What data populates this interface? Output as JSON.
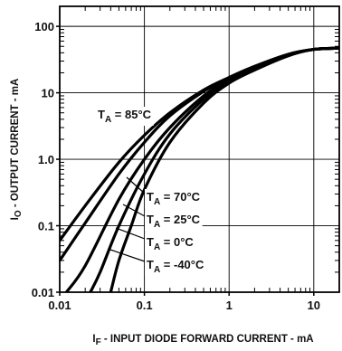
{
  "chart_data": {
    "type": "line",
    "xscale": "log",
    "yscale": "log",
    "xlim": [
      0.01,
      20
    ],
    "ylim": [
      0.01,
      200
    ],
    "grid": true,
    "x_ticks": [
      0.01,
      0.1,
      1,
      10
    ],
    "x_tick_labels": [
      "0.01",
      "0.1",
      "1",
      "10"
    ],
    "y_ticks": [
      0.01,
      0.1,
      1,
      10,
      100
    ],
    "y_tick_labels": [
      "0.01",
      "0.1",
      "1.0",
      "10",
      "100"
    ],
    "xlabel": {
      "main": "I",
      "sub": "F",
      "rest": " - INPUT DIODE FORWARD CURRENT - mA"
    },
    "ylabel": {
      "main": "I",
      "sub": "O",
      "rest": " - OUTPUT CURRENT - mA"
    },
    "series": [
      {
        "label": {
          "pre": "T",
          "sub": "A",
          "post": " = 85°C"
        },
        "points": [
          [
            0.01,
            0.06
          ],
          [
            0.02,
            0.2
          ],
          [
            0.05,
            0.9
          ],
          [
            0.1,
            2.3
          ],
          [
            0.2,
            5
          ],
          [
            0.5,
            11
          ],
          [
            1,
            17
          ],
          [
            2,
            25
          ],
          [
            5,
            38
          ],
          [
            10,
            45
          ],
          [
            20,
            47
          ]
        ]
      },
      {
        "label": {
          "pre": "T",
          "sub": "A",
          "post": " = 70°C"
        },
        "points": [
          [
            0.01,
            0.03
          ],
          [
            0.02,
            0.11
          ],
          [
            0.05,
            0.6
          ],
          [
            0.1,
            1.8
          ],
          [
            0.2,
            4.5
          ],
          [
            0.5,
            10.5
          ],
          [
            1,
            17
          ],
          [
            2,
            25
          ],
          [
            5,
            38
          ],
          [
            10,
            45
          ],
          [
            20,
            47
          ]
        ]
      },
      {
        "label": {
          "pre": "T",
          "sub": "A",
          "post": " = 25°C"
        },
        "points": [
          [
            0.012,
            0.01
          ],
          [
            0.02,
            0.025
          ],
          [
            0.05,
            0.25
          ],
          [
            0.1,
            1
          ],
          [
            0.2,
            3
          ],
          [
            0.5,
            9
          ],
          [
            1,
            16
          ],
          [
            2,
            24
          ],
          [
            5,
            37
          ],
          [
            10,
            45
          ],
          [
            20,
            47
          ]
        ]
      },
      {
        "label": {
          "pre": "T",
          "sub": "A",
          "post": " = 0°C"
        },
        "points": [
          [
            0.023,
            0.01
          ],
          [
            0.03,
            0.02
          ],
          [
            0.05,
            0.1
          ],
          [
            0.1,
            0.6
          ],
          [
            0.2,
            2.4
          ],
          [
            0.5,
            8
          ],
          [
            1,
            15
          ],
          [
            2,
            23
          ],
          [
            5,
            37
          ],
          [
            10,
            45
          ],
          [
            20,
            47
          ]
        ]
      },
      {
        "label": {
          "pre": "T",
          "sub": "A",
          "post": " = -40°C"
        },
        "points": [
          [
            0.04,
            0.01
          ],
          [
            0.05,
            0.03
          ],
          [
            0.07,
            0.1
          ],
          [
            0.1,
            0.35
          ],
          [
            0.2,
            1.8
          ],
          [
            0.5,
            7
          ],
          [
            1,
            14
          ],
          [
            2,
            22
          ],
          [
            5,
            36
          ],
          [
            10,
            45
          ],
          [
            20,
            47
          ]
        ]
      }
    ]
  }
}
